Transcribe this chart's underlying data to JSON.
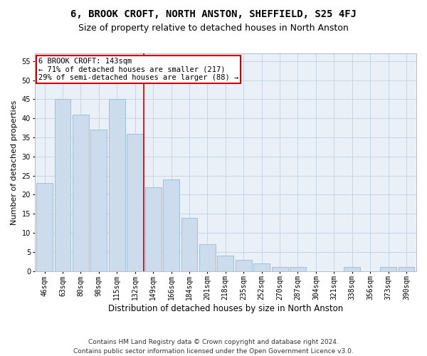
{
  "title": "6, BROOK CROFT, NORTH ANSTON, SHEFFIELD, S25 4FJ",
  "subtitle": "Size of property relative to detached houses in North Anston",
  "xlabel": "Distribution of detached houses by size in North Anston",
  "ylabel": "Number of detached properties",
  "footer_line1": "Contains HM Land Registry data © Crown copyright and database right 2024.",
  "footer_line2": "Contains public sector information licensed under the Open Government Licence v3.0.",
  "categories": [
    "46sqm",
    "63sqm",
    "80sqm",
    "98sqm",
    "115sqm",
    "132sqm",
    "149sqm",
    "166sqm",
    "184sqm",
    "201sqm",
    "218sqm",
    "235sqm",
    "252sqm",
    "270sqm",
    "287sqm",
    "304sqm",
    "321sqm",
    "338sqm",
    "356sqm",
    "373sqm",
    "390sqm"
  ],
  "values": [
    23,
    45,
    41,
    37,
    45,
    36,
    22,
    24,
    14,
    7,
    4,
    3,
    2,
    1,
    1,
    0,
    0,
    1,
    0,
    1,
    1
  ],
  "bar_color": "#ccdcec",
  "bar_edge_color": "#9ab8d4",
  "grid_color": "#c8d4e4",
  "annotation_box_text": "6 BROOK CROFT: 143sqm\n← 71% of detached houses are smaller (217)\n29% of semi-detached houses are larger (88) →",
  "annotation_box_color": "#ffffff",
  "annotation_box_edge_color": "#cc0000",
  "vline_x_index": 5.5,
  "vline_color": "#cc0000",
  "ylim_min": 0,
  "ylim_max": 57,
  "yticks": [
    0,
    5,
    10,
    15,
    20,
    25,
    30,
    35,
    40,
    45,
    50,
    55
  ],
  "title_fontsize": 10,
  "subtitle_fontsize": 9,
  "xlabel_fontsize": 8.5,
  "ylabel_fontsize": 8,
  "tick_fontsize": 7,
  "annotation_fontsize": 7.5,
  "footer_fontsize": 6.5
}
